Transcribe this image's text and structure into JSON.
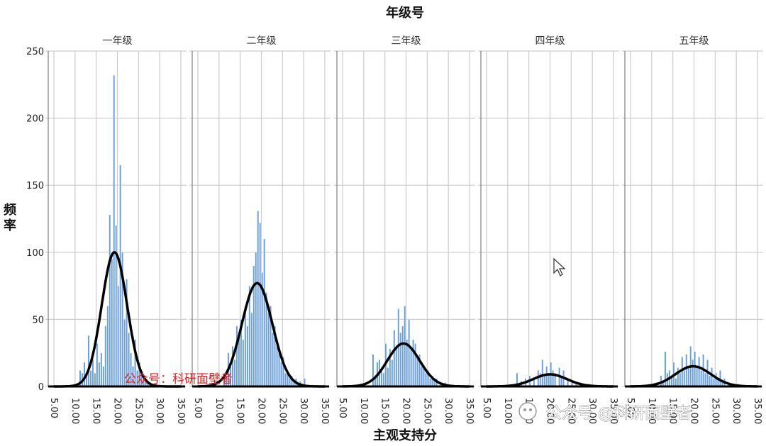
{
  "chart_data": {
    "type": "histogram",
    "title": "年级号",
    "xlabel": "主观支持分",
    "ylabel": "频率",
    "xlim": [
      5,
      35
    ],
    "ylim": [
      0,
      250
    ],
    "x_ticks": [
      "5.00",
      "10.00",
      "15.00",
      "20.00",
      "25.00",
      "30.00",
      "35.00"
    ],
    "y_ticks": [
      "0",
      "50",
      "100",
      "150",
      "200",
      "250"
    ],
    "grid": true,
    "bar_color": "#6a9fdc",
    "curve_color": "#000000",
    "bin_width": 0.5,
    "panels": [
      {
        "name": "一年级",
        "normal_curve": {
          "mean": 19.3,
          "sd": 3.0,
          "peak": 100
        },
        "bins": [
          [
            11.0,
            12
          ],
          [
            11.5,
            10
          ],
          [
            12.0,
            18
          ],
          [
            12.5,
            8
          ],
          [
            13.0,
            38
          ],
          [
            13.5,
            12
          ],
          [
            14.0,
            20
          ],
          [
            14.5,
            10
          ],
          [
            15.0,
            32
          ],
          [
            15.5,
            18
          ],
          [
            16.0,
            25
          ],
          [
            16.5,
            15
          ],
          [
            17.0,
            45
          ],
          [
            17.5,
            60
          ],
          [
            18.0,
            128
          ],
          [
            18.5,
            95
          ],
          [
            19.0,
            232
          ],
          [
            19.5,
            120
          ],
          [
            20.0,
            75
          ],
          [
            20.5,
            165
          ],
          [
            21.0,
            100
          ],
          [
            21.5,
            50
          ],
          [
            22.0,
            80
          ],
          [
            22.5,
            40
          ],
          [
            23.0,
            25
          ],
          [
            23.5,
            15
          ],
          [
            24.0,
            35
          ],
          [
            24.5,
            12
          ],
          [
            25.0,
            18
          ],
          [
            25.5,
            10
          ],
          [
            26.0,
            8
          ],
          [
            26.5,
            5
          ],
          [
            27.0,
            4
          ],
          [
            27.5,
            3
          ],
          [
            28.0,
            2
          ],
          [
            29.0,
            2
          ]
        ]
      },
      {
        "name": "二年级",
        "normal_curve": {
          "mean": 19.0,
          "sd": 3.6,
          "peak": 77
        },
        "bins": [
          [
            11.0,
            10
          ],
          [
            11.5,
            8
          ],
          [
            12.0,
            25
          ],
          [
            12.5,
            15
          ],
          [
            13.0,
            30
          ],
          [
            13.5,
            20
          ],
          [
            14.0,
            45
          ],
          [
            14.5,
            40
          ],
          [
            15.0,
            50
          ],
          [
            15.5,
            35
          ],
          [
            16.0,
            60
          ],
          [
            16.5,
            45
          ],
          [
            17.0,
            75
          ],
          [
            17.5,
            55
          ],
          [
            18.0,
            90
          ],
          [
            18.5,
            100
          ],
          [
            19.0,
            131
          ],
          [
            19.5,
            122
          ],
          [
            20.0,
            85
          ],
          [
            20.5,
            110
          ],
          [
            21.0,
            70
          ],
          [
            21.5,
            55
          ],
          [
            22.0,
            60
          ],
          [
            22.5,
            40
          ],
          [
            23.0,
            45
          ],
          [
            23.5,
            30
          ],
          [
            24.0,
            25
          ],
          [
            24.5,
            18
          ],
          [
            25.0,
            22
          ],
          [
            25.5,
            10
          ],
          [
            26.0,
            12
          ],
          [
            26.5,
            6
          ],
          [
            27.0,
            8
          ],
          [
            27.5,
            4
          ],
          [
            28.0,
            6
          ],
          [
            28.5,
            3
          ],
          [
            29.0,
            4
          ],
          [
            30.0,
            6
          ]
        ]
      },
      {
        "name": "三年级",
        "normal_curve": {
          "mean": 19.4,
          "sd": 3.8,
          "peak": 32
        },
        "bins": [
          [
            12.0,
            24
          ],
          [
            12.5,
            8
          ],
          [
            13.0,
            18
          ],
          [
            13.5,
            20
          ],
          [
            14.0,
            12
          ],
          [
            14.5,
            10
          ],
          [
            15.0,
            32
          ],
          [
            15.5,
            14
          ],
          [
            16.0,
            28
          ],
          [
            16.5,
            20
          ],
          [
            17.0,
            42
          ],
          [
            17.5,
            30
          ],
          [
            18.0,
            58
          ],
          [
            18.5,
            40
          ],
          [
            19.0,
            45
          ],
          [
            19.5,
            60
          ],
          [
            20.0,
            35
          ],
          [
            20.5,
            50
          ],
          [
            21.0,
            28
          ],
          [
            21.5,
            35
          ],
          [
            22.0,
            32
          ],
          [
            22.5,
            22
          ],
          [
            23.0,
            24
          ],
          [
            23.5,
            15
          ],
          [
            24.0,
            16
          ],
          [
            24.5,
            10
          ],
          [
            25.0,
            12
          ],
          [
            25.5,
            6
          ],
          [
            26.0,
            8
          ],
          [
            26.5,
            4
          ],
          [
            27.0,
            6
          ],
          [
            28.0,
            3
          ],
          [
            29.0,
            3
          ]
        ]
      },
      {
        "name": "四年级",
        "normal_curve": {
          "mean": 20.0,
          "sd": 4.0,
          "peak": 9
        },
        "bins": [
          [
            12.0,
            10
          ],
          [
            13.0,
            4
          ],
          [
            14.0,
            6
          ],
          [
            15.0,
            8
          ],
          [
            16.0,
            6
          ],
          [
            17.0,
            12
          ],
          [
            17.5,
            10
          ],
          [
            18.0,
            20
          ],
          [
            18.5,
            8
          ],
          [
            19.0,
            15
          ],
          [
            19.5,
            10
          ],
          [
            20.0,
            18
          ],
          [
            20.5,
            12
          ],
          [
            21.0,
            10
          ],
          [
            22.0,
            14
          ],
          [
            22.5,
            8
          ],
          [
            23.0,
            12
          ],
          [
            24.0,
            4
          ],
          [
            25.0,
            4
          ],
          [
            26.0,
            3
          ],
          [
            27.0,
            2
          ],
          [
            29.0,
            2
          ]
        ]
      },
      {
        "name": "五年级",
        "normal_curve": {
          "mean": 19.8,
          "sd": 4.2,
          "peak": 15
        },
        "bins": [
          [
            12.0,
            8
          ],
          [
            12.5,
            4
          ],
          [
            13.0,
            26
          ],
          [
            13.5,
            10
          ],
          [
            14.0,
            12
          ],
          [
            14.5,
            8
          ],
          [
            15.0,
            18
          ],
          [
            15.5,
            6
          ],
          [
            16.0,
            14
          ],
          [
            16.5,
            10
          ],
          [
            17.0,
            22
          ],
          [
            17.5,
            12
          ],
          [
            18.0,
            24
          ],
          [
            18.5,
            15
          ],
          [
            19.0,
            30
          ],
          [
            19.5,
            20
          ],
          [
            20.0,
            26
          ],
          [
            20.5,
            15
          ],
          [
            21.0,
            22
          ],
          [
            21.5,
            12
          ],
          [
            22.0,
            24
          ],
          [
            22.5,
            10
          ],
          [
            23.0,
            20
          ],
          [
            23.5,
            8
          ],
          [
            24.0,
            14
          ],
          [
            24.5,
            6
          ],
          [
            25.0,
            10
          ],
          [
            25.5,
            5
          ],
          [
            26.0,
            12
          ],
          [
            26.5,
            4
          ],
          [
            27.0,
            6
          ],
          [
            28.0,
            3
          ],
          [
            29.0,
            2
          ],
          [
            30.0,
            2
          ]
        ]
      }
    ]
  },
  "watermarks": {
    "overlay_red": "公众号：科研面壁者",
    "overlay_gray": "公众号 @科研面壁者"
  },
  "cursor": {
    "icon": "arrow-cursor-icon"
  }
}
